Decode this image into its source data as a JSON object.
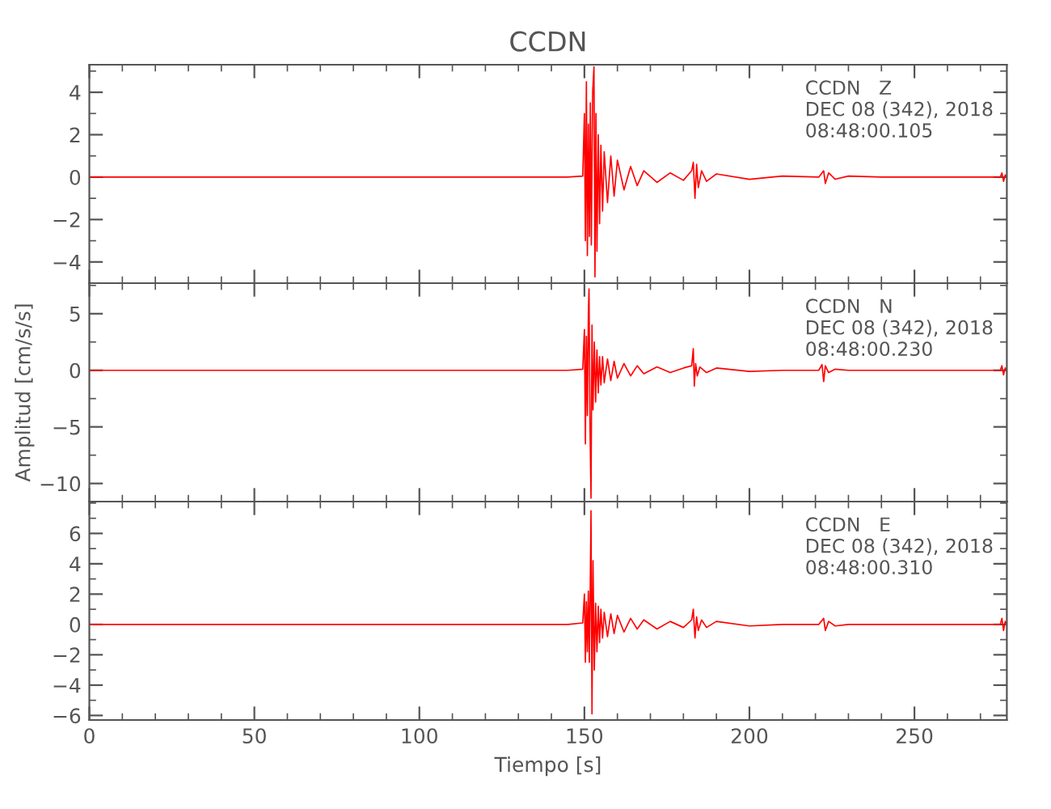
{
  "chart_data": [
    {
      "type": "line",
      "title": "CCDN",
      "annotations": [
        "CCDN   Z\nDEC 08 (342), 2018\n08:48:00.105"
      ],
      "xlim": [
        0,
        278
      ],
      "xticks": [
        0,
        50,
        100,
        150,
        200,
        250
      ],
      "ylim": [
        -5,
        5.3
      ],
      "yticks": [
        -4,
        -2,
        0,
        2,
        4
      ],
      "tick_labels": "y",
      "grid": false,
      "line_style": "solid",
      "marker": "none",
      "series": [
        {
          "color": "#ff0000",
          "x": [
            0,
            145,
            149.5,
            150,
            150.3,
            150.6,
            150.9,
            151.2,
            151.5,
            151.8,
            152.1,
            152.5,
            152.9,
            153.2,
            153.5,
            153.8,
            154.2,
            154.6,
            155,
            155.5,
            156,
            157,
            158,
            159,
            160,
            162,
            164,
            166,
            168,
            172,
            176,
            180,
            182.5,
            183,
            183.5,
            184,
            184.5,
            185.5,
            187,
            190,
            200,
            210,
            221,
            222.5,
            223,
            224,
            226,
            230,
            240,
            276,
            276.5,
            277,
            277.5,
            278
          ],
          "values": [
            0,
            0,
            0.05,
            3.0,
            -3.0,
            4.5,
            -3.7,
            2.5,
            -2.8,
            3.5,
            -3.2,
            4.0,
            5.2,
            -4.7,
            3.0,
            -3.5,
            2.0,
            -2.2,
            1.5,
            -1.6,
            1.2,
            -1.2,
            1.0,
            -0.9,
            0.8,
            -0.6,
            0.5,
            -0.4,
            0.3,
            -0.25,
            0.2,
            -0.15,
            0.3,
            0.7,
            -1.0,
            0.6,
            -0.5,
            0.3,
            -0.2,
            0.15,
            -0.1,
            0.05,
            0,
            0.3,
            -0.3,
            0.2,
            -0.1,
            0.05,
            0,
            0,
            0.2,
            -0.2,
            0.1,
            0
          ]
        }
      ]
    },
    {
      "type": "line",
      "ylabel": "Amplitud [cm/s/s]",
      "annotations": [
        "CCDN   N\nDEC 08 (342), 2018\n08:48:00.230"
      ],
      "xlim": [
        0,
        278
      ],
      "xticks": [
        0,
        50,
        100,
        150,
        200,
        250
      ],
      "ylim": [
        -11.6,
        7.7
      ],
      "yticks": [
        -10,
        -5,
        0,
        5
      ],
      "tick_labels": "y",
      "grid": false,
      "line_style": "solid",
      "marker": "none",
      "series": [
        {
          "color": "#ff0000",
          "x": [
            0,
            145,
            149.5,
            150,
            150.3,
            150.6,
            150.9,
            151.2,
            151.4,
            151.7,
            152,
            152.3,
            152.6,
            153,
            153.4,
            153.8,
            154.2,
            154.6,
            155,
            155.5,
            156,
            157,
            158,
            159,
            160,
            162,
            164,
            166,
            168,
            172,
            176,
            180,
            182.5,
            183,
            183.3,
            183.7,
            184.2,
            185,
            187,
            190,
            200,
            210,
            221,
            222,
            222.5,
            223,
            224,
            226,
            230,
            240,
            276,
            276.5,
            277,
            277.5,
            278
          ],
          "values": [
            0,
            0,
            0.1,
            3.6,
            -6.5,
            3.0,
            -4.0,
            5.0,
            7.2,
            -5.0,
            -11.3,
            4.0,
            -3.5,
            2.5,
            -2.8,
            1.8,
            -2.0,
            1.2,
            -1.3,
            1.2,
            -1.1,
            1.0,
            -0.9,
            0.8,
            -0.7,
            0.6,
            -0.5,
            0.4,
            -0.3,
            0.3,
            -0.2,
            0.2,
            0.4,
            1.9,
            -1.4,
            0.6,
            -0.5,
            0.3,
            -0.2,
            0.2,
            -0.1,
            0,
            0,
            0.5,
            -1.0,
            0.4,
            -0.2,
            0.1,
            0,
            0,
            0,
            0.4,
            -0.4,
            0.2,
            0
          ]
        }
      ]
    },
    {
      "type": "line",
      "xlabel": "Tiempo [s]",
      "annotations": [
        "CCDN   E\nDEC 08 (342), 2018\n08:48:00.310"
      ],
      "xlim": [
        0,
        278
      ],
      "xticks": [
        0,
        50,
        100,
        150,
        200,
        250
      ],
      "ylim": [
        -6.3,
        8.1
      ],
      "yticks": [
        -6,
        -4,
        -2,
        0,
        2,
        4,
        6
      ],
      "grid": false,
      "line_style": "solid",
      "marker": "none",
      "series": [
        {
          "color": "#ff0000",
          "x": [
            0,
            145,
            149.5,
            150,
            150.3,
            150.6,
            150.9,
            151.2,
            151.5,
            151.8,
            152,
            152.3,
            152.6,
            153,
            153.4,
            153.8,
            154.2,
            154.6,
            155,
            155.5,
            156,
            157,
            158,
            159,
            160,
            162,
            164,
            166,
            168,
            172,
            176,
            180,
            182.5,
            183,
            183.5,
            184,
            184.5,
            185.5,
            187,
            190,
            200,
            210,
            221,
            222.5,
            223,
            224,
            226,
            230,
            240,
            276,
            276.5,
            277,
            277.5,
            278
          ],
          "values": [
            0,
            0,
            0.1,
            2.0,
            -2.5,
            1.5,
            -1.8,
            2.2,
            -2.5,
            3.0,
            7.5,
            -5.9,
            4.2,
            -3.0,
            1.4,
            -1.8,
            1.2,
            -1.2,
            1.0,
            -0.9,
            0.8,
            -0.8,
            0.7,
            -0.6,
            0.6,
            -0.5,
            0.4,
            -0.3,
            0.3,
            -0.3,
            0.2,
            -0.2,
            0.3,
            1.0,
            -0.9,
            0.5,
            -0.4,
            0.3,
            -0.2,
            0.2,
            -0.1,
            0,
            0,
            0.4,
            -0.4,
            0.2,
            -0.1,
            0,
            0,
            0,
            0.4,
            -0.4,
            0.2,
            0
          ]
        }
      ]
    }
  ]
}
